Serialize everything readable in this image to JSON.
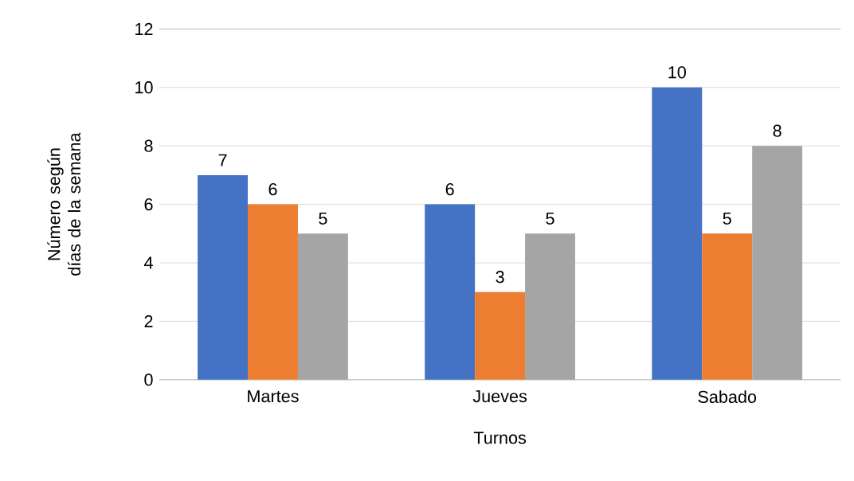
{
  "chart_data": {
    "type": "bar",
    "xlabel": "Turnos",
    "ylabel": "Número según días de la semana",
    "categories": [
      "Martes",
      "Jueves",
      "Sabado"
    ],
    "series": [
      {
        "color": "#4472c4",
        "values": [
          7,
          6,
          10
        ]
      },
      {
        "color": "#ed7d31",
        "values": [
          6,
          3,
          5
        ]
      },
      {
        "color": "#a5a5a5",
        "values": [
          5,
          5,
          8
        ]
      }
    ],
    "ylim": [
      0,
      12
    ],
    "yticks": [
      0,
      2,
      4,
      6,
      8,
      10,
      12
    ],
    "grid": "y",
    "data_labels": true
  }
}
